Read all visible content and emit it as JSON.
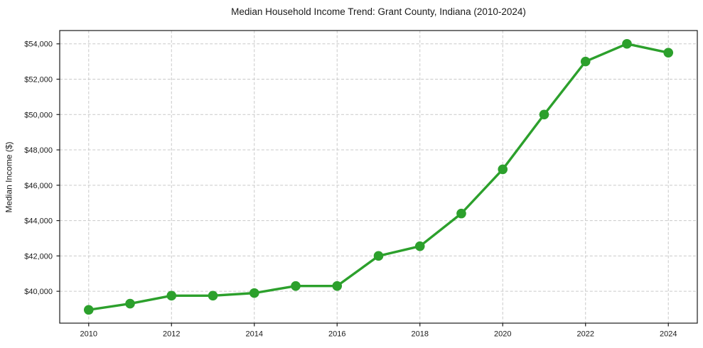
{
  "chart_data": {
    "type": "line",
    "title": "Median Household Income Trend: Grant County, Indiana (2010-2024)",
    "ylabel": "Median Income ($)",
    "xlabel": "",
    "series_name": "Median household income",
    "x": [
      2010,
      2011,
      2012,
      2013,
      2014,
      2015,
      2016,
      2017,
      2018,
      2019,
      2020,
      2021,
      2022,
      2023,
      2024
    ],
    "values": [
      38950,
      39300,
      39750,
      39750,
      39900,
      40300,
      40300,
      42000,
      42550,
      44400,
      46900,
      50000,
      53000,
      54000,
      53500
    ],
    "x_ticks": [
      2010,
      2012,
      2014,
      2016,
      2018,
      2020,
      2022,
      2024
    ],
    "y_ticks": [
      {
        "value": 40000,
        "label": "$40,000"
      },
      {
        "value": 42000,
        "label": "$42,000"
      },
      {
        "value": 44000,
        "label": "$44,000"
      },
      {
        "value": 46000,
        "label": "$46,000"
      },
      {
        "value": 48000,
        "label": "$48,000"
      },
      {
        "value": 50000,
        "label": "$50,000"
      },
      {
        "value": 52000,
        "label": "$52,000"
      },
      {
        "value": 54000,
        "label": "$54,000"
      }
    ],
    "xlim": [
      2009.3,
      2024.7
    ],
    "ylim": [
      38197,
      54753
    ],
    "grid": true,
    "grid_style": "dashed",
    "legend_position": "none",
    "line_color": "#2ca02c",
    "marker": "circle",
    "grid_color": "#c9c9c9",
    "spine_color": "#1a1a1a",
    "background_color": "#ffffff"
  }
}
